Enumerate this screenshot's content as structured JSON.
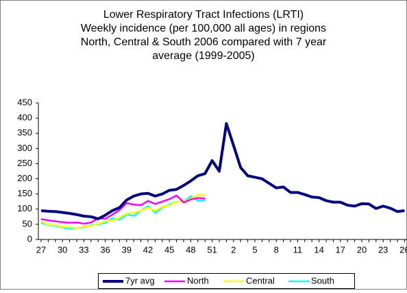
{
  "chart_data": {
    "type": "line",
    "title": [
      "Lower Respiratory Tract Infections (LRTI)",
      "Weekly incidence (per 100,000 all ages) in regions",
      "North, Central & South 2006 compared with 7 year",
      "average (1999-2005)"
    ],
    "categories": [
      "27",
      null,
      null,
      "30",
      null,
      null,
      "33",
      null,
      null,
      "36",
      null,
      null,
      "39",
      null,
      null,
      "42",
      null,
      null,
      "45",
      null,
      null,
      "48",
      null,
      null,
      "51",
      null,
      null,
      "2",
      null,
      null,
      "5",
      null,
      null,
      "8",
      null,
      null,
      "11",
      null,
      null,
      "14",
      null,
      null,
      "17",
      null,
      null,
      "20",
      null,
      null,
      "23",
      null,
      null,
      "26"
    ],
    "ylim": [
      0,
      450
    ],
    "yticks": [
      0,
      50,
      100,
      150,
      200,
      250,
      300,
      350,
      400,
      450
    ],
    "series": [
      {
        "name": "7yr avg",
        "color": "#000080",
        "values": [
          95,
          93,
          92,
          89,
          86,
          82,
          77,
          75,
          68,
          80,
          95,
          105,
          130,
          143,
          150,
          152,
          143,
          150,
          162,
          165,
          178,
          193,
          210,
          217,
          260,
          225,
          382,
          310,
          237,
          210,
          205,
          200,
          185,
          170,
          173,
          155,
          155,
          148,
          140,
          138,
          128,
          123,
          123,
          113,
          110,
          118,
          117,
          102,
          110,
          103,
          92,
          95
        ]
      },
      {
        "name": "North",
        "color": "#ff00ff",
        "values": [
          67,
          63,
          60,
          57,
          55,
          56,
          52,
          56,
          70,
          68,
          82,
          97,
          120,
          115,
          113,
          127,
          117,
          125,
          133,
          145,
          122,
          132,
          137,
          135,
          null,
          null,
          null,
          null,
          null,
          null,
          null,
          null,
          null,
          null,
          null,
          null,
          null,
          null,
          null,
          null,
          null,
          null,
          null,
          null,
          null,
          null,
          null,
          null,
          null,
          null,
          null,
          null
        ]
      },
      {
        "name": "Central",
        "color": "#ffff00",
        "values": [
          60,
          48,
          47,
          42,
          40,
          38,
          42,
          45,
          52,
          60,
          62,
          73,
          85,
          88,
          95,
          105,
          95,
          108,
          112,
          125,
          125,
          135,
          147,
          145,
          null,
          null,
          null,
          null,
          null,
          null,
          null,
          null,
          null,
          null,
          null,
          null,
          null,
          null,
          null,
          null,
          null,
          null,
          null,
          null,
          null,
          null,
          null,
          null,
          null,
          null,
          null,
          null
        ]
      },
      {
        "name": "South",
        "color": "#00ffff",
        "values": [
          55,
          47,
          45,
          40,
          35,
          38,
          40,
          47,
          50,
          55,
          70,
          65,
          82,
          78,
          95,
          110,
          88,
          105,
          115,
          125,
          125,
          143,
          128,
          130,
          null,
          null,
          null,
          null,
          null,
          null,
          null,
          null,
          null,
          null,
          null,
          null,
          null,
          null,
          null,
          null,
          null,
          null,
          null,
          null,
          null,
          null,
          null,
          null,
          null,
          null,
          null,
          null
        ]
      }
    ]
  }
}
